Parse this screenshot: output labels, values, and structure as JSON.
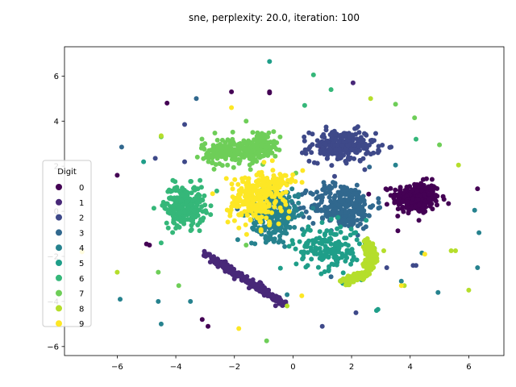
{
  "chart_data": {
    "type": "scatter",
    "title": "sne, perplexity: 20.0, iteration: 100",
    "xlabel": "",
    "ylabel": "",
    "xlim": [
      -7.8,
      7.2
    ],
    "ylim": [
      -6.4,
      7.3
    ],
    "xticks": [
      -6,
      -4,
      -2,
      0,
      2,
      4,
      6
    ],
    "xtick_labels": [
      "−6",
      "−4",
      "−2",
      "0",
      "2",
      "4",
      "6"
    ],
    "yticks": [
      -6,
      -4,
      -2,
      0,
      2,
      4,
      6
    ],
    "ytick_labels": [
      "−6",
      "−4",
      "−2",
      "0",
      "2",
      "4",
      "6"
    ],
    "grid": false,
    "legend": {
      "title": "Digit",
      "placement": "lower-left"
    },
    "series": [
      {
        "name": "0",
        "color": "#440154",
        "clusters": [
          {
            "cx": 4.2,
            "cy": 0.6,
            "sx": 0.4,
            "sy": 0.35,
            "n": 260
          }
        ],
        "outliers": [
          [
            -4.3,
            4.8
          ],
          [
            -2.1,
            5.3
          ],
          [
            -0.8,
            5.3
          ],
          [
            -0.8,
            5.25
          ],
          [
            -6.0,
            1.6
          ],
          [
            -3.1,
            -4.8
          ],
          [
            -2.9,
            -5.1
          ],
          [
            -4.9,
            -1.5
          ],
          [
            -5.0,
            -1.45
          ],
          [
            6.3,
            1.0
          ],
          [
            4.3,
            -0.4
          ]
        ]
      },
      {
        "name": "1",
        "color": "#482878",
        "lines": [
          {
            "x0": -3.0,
            "y0": -1.9,
            "x1": -0.3,
            "y1": -4.1,
            "n": 260,
            "jitter": 0.07
          }
        ],
        "outliers": [
          [
            2.05,
            5.7
          ],
          [
            0.9,
            2.9
          ],
          [
            -2.0,
            -3.0
          ],
          [
            -1.5,
            -3.4
          ]
        ]
      },
      {
        "name": "2",
        "color": "#3e4989",
        "clusters": [
          {
            "cx": 1.7,
            "cy": 2.9,
            "sx": 0.55,
            "sy": 0.35,
            "n": 230
          }
        ],
        "outliers": [
          [
            -3.7,
            3.85
          ],
          [
            -3.7,
            2.2
          ],
          [
            -4.7,
            2.35
          ],
          [
            4.2,
            -2.4
          ],
          [
            1.0,
            -5.1
          ],
          [
            2.15,
            -4.5
          ],
          [
            3.2,
            -2.5
          ],
          [
            4.1,
            -2.4
          ],
          [
            1.1,
            3.0
          ],
          [
            2.9,
            2.6
          ]
        ]
      },
      {
        "name": "3",
        "color": "#31688e",
        "clusters": [
          {
            "cx": 1.7,
            "cy": 0.25,
            "sx": 0.55,
            "sy": 0.5,
            "n": 280
          }
        ],
        "outliers": [
          [
            -3.3,
            5.0
          ],
          [
            -5.85,
            2.85
          ],
          [
            1.3,
            -2.9
          ],
          [
            -1.9,
            0.1
          ],
          [
            2.6,
            -0.2
          ]
        ]
      },
      {
        "name": "4",
        "color": "#26828e",
        "clusters": [
          {
            "cx": -0.6,
            "cy": -0.1,
            "sx": 0.4,
            "sy": 0.55,
            "n": 280
          }
        ],
        "outliers": [
          [
            3.5,
            2.05
          ],
          [
            4.4,
            -1.85
          ],
          [
            3.7,
            -3.1
          ],
          [
            4.95,
            -3.6
          ],
          [
            6.2,
            0.05
          ],
          [
            6.35,
            -0.95
          ],
          [
            6.3,
            -2.5
          ],
          [
            -5.9,
            -3.9
          ],
          [
            -4.6,
            -4.0
          ],
          [
            -4.5,
            -5.0
          ],
          [
            -3.5,
            -4.0
          ],
          [
            -0.2,
            -3.7
          ],
          [
            -0.9,
            2.9
          ],
          [
            -0.4,
            1.5
          ]
        ]
      },
      {
        "name": "5",
        "color": "#1f9e89",
        "clusters": [
          {
            "cx": 1.2,
            "cy": -1.6,
            "sx": 0.55,
            "sy": 0.5,
            "n": 170
          }
        ],
        "outliers": [
          [
            -0.8,
            6.65
          ],
          [
            -5.1,
            2.2
          ],
          [
            2.85,
            -4.4
          ],
          [
            2.9,
            -4.35
          ],
          [
            1.7,
            -3.2
          ],
          [
            0.5,
            -2.4
          ],
          [
            2.5,
            -0.4
          ]
        ]
      },
      {
        "name": "6",
        "color": "#35b779",
        "clusters": [
          {
            "cx": -3.7,
            "cy": 0.25,
            "sx": 0.35,
            "sy": 0.45,
            "n": 230
          }
        ],
        "outliers": [
          [
            0.7,
            6.05
          ],
          [
            1.3,
            5.4
          ],
          [
            4.2,
            3.2
          ],
          [
            0.4,
            4.7
          ],
          [
            -4.0,
            -0.75
          ],
          [
            -4.5,
            -1.4
          ],
          [
            -3.0,
            0.0
          ],
          [
            -2.6,
            0.9
          ]
        ]
      },
      {
        "name": "7",
        "color": "#6ece58",
        "clusters": [
          {
            "cx": -2.1,
            "cy": 2.65,
            "sx": 0.5,
            "sy": 0.3,
            "n": 200
          },
          {
            "cx": -1.05,
            "cy": 2.95,
            "sx": 0.25,
            "sy": 0.3,
            "n": 90
          }
        ],
        "outliers": [
          [
            -1.6,
            4.0
          ],
          [
            4.15,
            4.15
          ],
          [
            3.5,
            4.75
          ],
          [
            -0.9,
            -5.75
          ],
          [
            -4.5,
            3.3
          ],
          [
            -3.9,
            -3.3
          ],
          [
            -4.6,
            -2.7
          ],
          [
            5.0,
            2.95
          ],
          [
            -1.6,
            -1.5
          ],
          [
            0.1,
            1.7
          ]
        ]
      },
      {
        "name": "8",
        "color": "#b5de2b",
        "arcs": [
          {
            "cx": 1.6,
            "cy": -2.0,
            "r": 1.1,
            "a0": -90,
            "a1": 40,
            "n": 200,
            "jitter": 0.1
          }
        ],
        "outliers": [
          [
            2.65,
            5.0
          ],
          [
            5.65,
            2.05
          ],
          [
            -6.0,
            -2.7
          ],
          [
            -4.5,
            3.35
          ],
          [
            5.4,
            -1.75
          ],
          [
            5.55,
            -1.75
          ],
          [
            6.0,
            -3.5
          ],
          [
            3.8,
            -3.3
          ],
          [
            -0.2,
            -4.2
          ],
          [
            3.1,
            -1.75
          ]
        ]
      },
      {
        "name": "9",
        "color": "#fde725",
        "clusters": [
          {
            "cx": -1.3,
            "cy": 0.5,
            "sx": 0.45,
            "sy": 0.6,
            "n": 230
          },
          {
            "cx": -0.6,
            "cy": 1.25,
            "sx": 0.3,
            "sy": 0.2,
            "n": 70
          }
        ],
        "outliers": [
          [
            -2.1,
            4.6
          ],
          [
            -1.85,
            -5.2
          ],
          [
            0.3,
            -3.75
          ],
          [
            4.5,
            -1.9
          ],
          [
            3.7,
            -3.3
          ],
          [
            -7.2,
            -1.8
          ]
        ]
      }
    ]
  }
}
